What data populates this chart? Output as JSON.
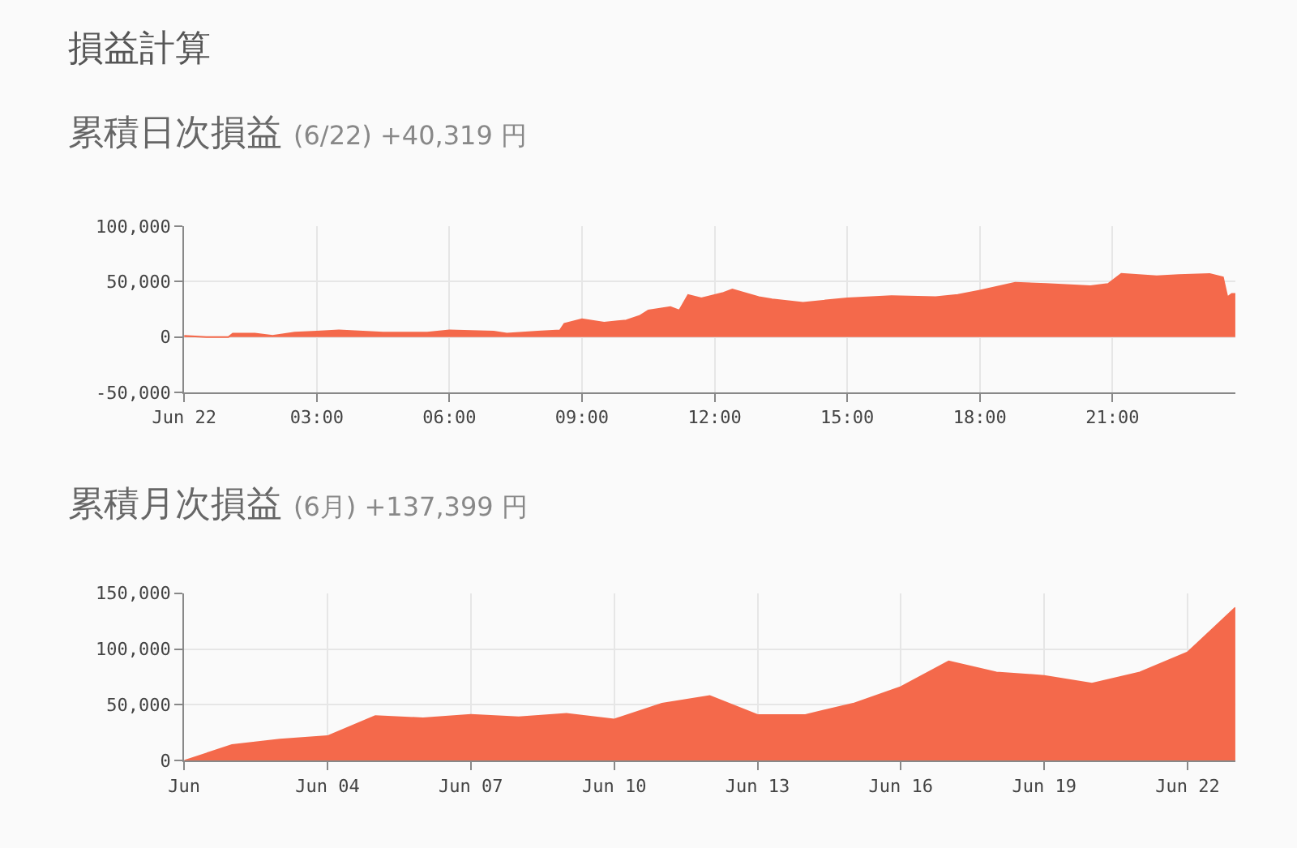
{
  "chart_data": [
    {
      "type": "area",
      "title": "累積日次損益",
      "subtitle": "(6/22) +40,319 円",
      "annotations": [
        "損益計算"
      ],
      "x": [
        0,
        0.5,
        1.0,
        1.1,
        1.6,
        2.0,
        2.5,
        3.0,
        3.5,
        4.5,
        5.5,
        6.0,
        7.0,
        7.3,
        8.0,
        8.5,
        8.6,
        9.0,
        9.5,
        10.0,
        10.3,
        10.5,
        11.0,
        11.2,
        11.4,
        11.7,
        12.2,
        12.4,
        13.0,
        13.3,
        14.0,
        15.0,
        16.0,
        17.0,
        17.5,
        18.0,
        18.8,
        19.5,
        20.5,
        20.9,
        21.2,
        22.0,
        22.5,
        23.2,
        23.5,
        23.6,
        23.7,
        23.78
      ],
      "series": [
        {
          "color": "#f4694b",
          "values": [
            1000,
            0,
            0,
            3000,
            3000,
            1000,
            4000,
            5000,
            6000,
            4000,
            4000,
            6000,
            5000,
            3000,
            5000,
            6000,
            12000,
            16000,
            13000,
            15000,
            19000,
            24000,
            27000,
            24000,
            38000,
            35000,
            40000,
            43000,
            36000,
            34000,
            31000,
            35000,
            37000,
            36000,
            38000,
            42000,
            49000,
            48000,
            46000,
            48000,
            57000,
            55000,
            56000,
            57000,
            54000,
            36000,
            39000,
            39000
          ]
        }
      ],
      "xlim": [
        0,
        23.78
      ],
      "xticks": [
        {
          "value": 0,
          "label": "Jun 22"
        },
        {
          "value": 3,
          "label": "03:00"
        },
        {
          "value": 6,
          "label": "06:00"
        },
        {
          "value": 9,
          "label": "09:00"
        },
        {
          "value": 12,
          "label": "12:00"
        },
        {
          "value": 15,
          "label": "15:00"
        },
        {
          "value": 18,
          "label": "18:00"
        },
        {
          "value": 21,
          "label": "21:00"
        }
      ],
      "ylim": [
        -50000,
        100000
      ],
      "yticks": [
        {
          "value": -50000,
          "label": "-50,000"
        },
        {
          "value": 0,
          "label": "0"
        },
        {
          "value": 50000,
          "label": "50,000"
        },
        {
          "value": 100000,
          "label": "100,000"
        }
      ],
      "grid": true
    },
    {
      "type": "area",
      "title": "累積月次損益",
      "subtitle": "(6月) +137,399 円",
      "x": [
        "--06-01",
        "--06-02",
        "--06-03",
        "--06-04",
        "--06-05",
        "--06-06",
        "--06-07",
        "--06-08",
        "--06-09",
        "--06-10",
        "--06-11",
        "--06-12",
        "--06-13",
        "--06-14",
        "--06-15",
        "--06-16",
        "--06-17",
        "--06-18",
        "--06-19",
        "--06-20",
        "--06-21",
        "--06-22",
        "--06-23"
      ],
      "series": [
        {
          "color": "#f4694b",
          "values": [
            0,
            14000,
            19000,
            22000,
            40000,
            38000,
            41000,
            39000,
            42000,
            37000,
            51000,
            58000,
            41000,
            41000,
            51000,
            66000,
            89000,
            79000,
            76000,
            69000,
            79000,
            97000,
            137000
          ]
        }
      ],
      "xlim": [
        "--06-01",
        "--06-23"
      ],
      "xticks": [
        {
          "value": "--06-01",
          "label": "Jun"
        },
        {
          "value": "--06-04",
          "label": "Jun 04"
        },
        {
          "value": "--06-07",
          "label": "Jun 07"
        },
        {
          "value": "--06-10",
          "label": "Jun 10"
        },
        {
          "value": "--06-13",
          "label": "Jun 13"
        },
        {
          "value": "--06-16",
          "label": "Jun 16"
        },
        {
          "value": "--06-19",
          "label": "Jun 19"
        },
        {
          "value": "--06-22",
          "label": "Jun 22"
        }
      ],
      "ylim": [
        0,
        150000
      ],
      "yticks": [
        {
          "value": 0,
          "label": "0"
        },
        {
          "value": 50000,
          "label": "50,000"
        },
        {
          "value": 100000,
          "label": "100,000"
        },
        {
          "value": 150000,
          "label": "150,000"
        }
      ],
      "grid": true
    }
  ]
}
